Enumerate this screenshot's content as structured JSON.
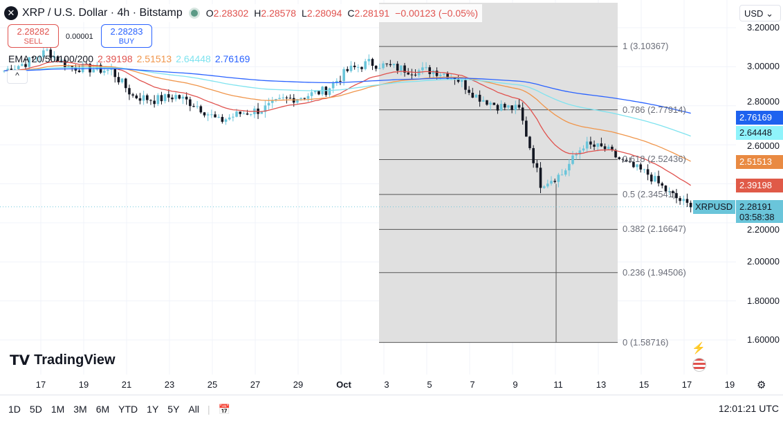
{
  "header": {
    "symbol": "XRP / U.S. Dollar · 4h · Bitstamp",
    "open_label": "O",
    "open": "2.28302",
    "high_label": "H",
    "high": "2.28578",
    "low_label": "L",
    "low": "2.28094",
    "close_label": "C",
    "close": "2.28191",
    "change": "−0.00123 (−0.05%)"
  },
  "trade": {
    "sell_price": "2.28282",
    "sell_label": "SELL",
    "buy_price": "2.28283",
    "buy_label": "BUY",
    "spread": "0.00001"
  },
  "ema": {
    "label": "EMA 20/50/100/200",
    "v20": "2.39198",
    "v50": "2.51513",
    "v100": "2.64448",
    "v200": "2.76169"
  },
  "colors": {
    "ema20": "#e0524e",
    "ema50": "#f0954a",
    "ema100": "#7fe3ef",
    "ema200": "#2962ff",
    "up": "#6ac5da",
    "down": "#131722"
  },
  "currency": "USD",
  "price_axis": [
    "3.20000",
    "3.00000",
    "2.80000",
    "2.60000",
    "2.20000",
    "2.00000",
    "1.80000",
    "1.60000"
  ],
  "price_tags": {
    "ema200": "2.76169",
    "ema100": "2.64448",
    "ema50": "2.51513",
    "ema20": "2.39198",
    "last": "2.28191",
    "countdown": "03:58:38",
    "symbol": "XRPUSD"
  },
  "fib": [
    {
      "label": "1 (3.10367)",
      "v": 3.10367
    },
    {
      "label": "0.786 (2.77914)",
      "v": 2.77914
    },
    {
      "label": "0.618 (2.52436)",
      "v": 2.52436
    },
    {
      "label": "0.5 (2.34541)",
      "v": 2.34541
    },
    {
      "label": "0.382 (2.16647)",
      "v": 2.16647
    },
    {
      "label": "0.236 (1.94506)",
      "v": 1.94506
    },
    {
      "label": "0 (1.58716)",
      "v": 1.58716
    }
  ],
  "date_axis": [
    "17",
    "19",
    "21",
    "23",
    "25",
    "27",
    "29",
    "Oct",
    "3",
    "5",
    "7",
    "9",
    "11",
    "13",
    "15",
    "17",
    "19"
  ],
  "anchors": [
    2.98,
    3.02,
    3.08,
    3.0,
    2.99,
    2.98,
    2.85,
    2.83,
    2.85,
    2.8,
    2.72,
    2.76,
    2.78,
    2.83,
    2.85,
    2.88,
    2.98,
    3.02,
    3.0,
    2.98,
    2.98,
    2.95,
    2.85,
    2.8,
    2.78,
    2.4,
    2.45,
    2.6,
    2.58,
    2.5,
    2.45,
    2.35,
    2.28
  ],
  "brand": "TradingView",
  "ranges": [
    "1D",
    "5D",
    "1M",
    "3M",
    "6M",
    "YTD",
    "1Y",
    "5Y",
    "All"
  ],
  "clock": "12:01:21 UTC"
}
